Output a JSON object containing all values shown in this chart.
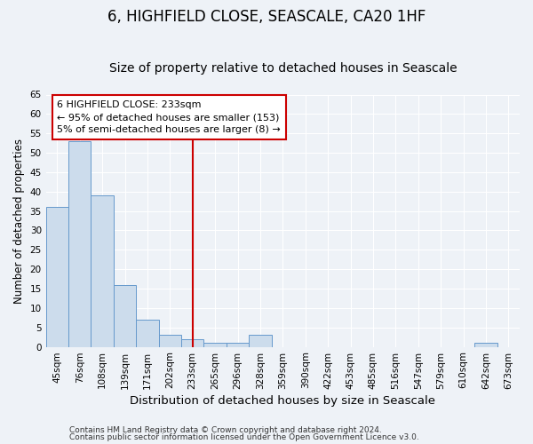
{
  "title": "6, HIGHFIELD CLOSE, SEASCALE, CA20 1HF",
  "subtitle": "Size of property relative to detached houses in Seascale",
  "xlabel": "Distribution of detached houses by size in Seascale",
  "ylabel": "Number of detached properties",
  "footnote1": "Contains HM Land Registry data © Crown copyright and database right 2024.",
  "footnote2": "Contains public sector information licensed under the Open Government Licence v3.0.",
  "categories": [
    "45sqm",
    "76sqm",
    "108sqm",
    "139sqm",
    "171sqm",
    "202sqm",
    "233sqm",
    "265sqm",
    "296sqm",
    "328sqm",
    "359sqm",
    "390sqm",
    "422sqm",
    "453sqm",
    "485sqm",
    "516sqm",
    "547sqm",
    "579sqm",
    "610sqm",
    "642sqm",
    "673sqm"
  ],
  "values": [
    36,
    53,
    39,
    16,
    7,
    3,
    2,
    1,
    1,
    3,
    0,
    0,
    0,
    0,
    0,
    0,
    0,
    0,
    0,
    1,
    0
  ],
  "bar_color": "#ccdcec",
  "bar_edge_color": "#6699cc",
  "vline_x": 6,
  "vline_color": "#cc0000",
  "annotation_line1": "6 HIGHFIELD CLOSE: 233sqm",
  "annotation_line2": "← 95% of detached houses are smaller (153)",
  "annotation_line3": "5% of semi-detached houses are larger (8) →",
  "annotation_box_facecolor": "#ffffff",
  "annotation_box_edgecolor": "#cc0000",
  "ylim": [
    0,
    65
  ],
  "yticks": [
    0,
    5,
    10,
    15,
    20,
    25,
    30,
    35,
    40,
    45,
    50,
    55,
    60,
    65
  ],
  "background_color": "#eef2f7",
  "grid_color": "#ffffff",
  "title_fontsize": 12,
  "subtitle_fontsize": 10,
  "tick_fontsize": 7.5,
  "ylabel_fontsize": 8.5,
  "xlabel_fontsize": 9.5,
  "annotation_fontsize": 8,
  "footnote_fontsize": 6.5
}
